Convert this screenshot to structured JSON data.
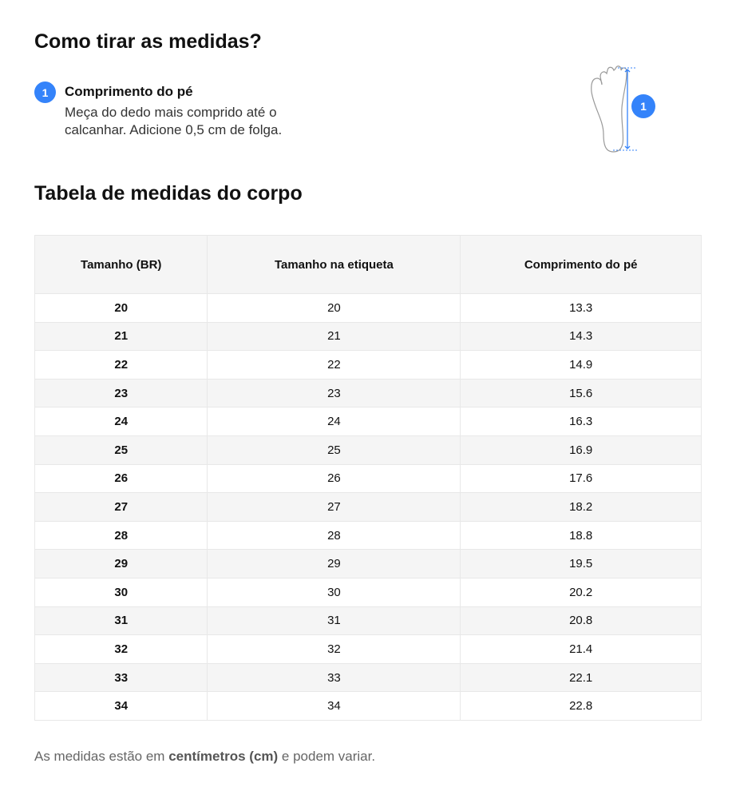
{
  "title": "Como tirar as medidas?",
  "step": {
    "number": "1",
    "title": "Comprimento do pé",
    "description": "Meça do dedo mais comprido até o calcanhar. Adicione 0,5 cm de folga."
  },
  "illustration": {
    "badge": "1",
    "accent": "#3483fa"
  },
  "table_title": "Tabela de medidas do corpo",
  "table": {
    "headers": [
      "Tamanho (BR)",
      "Tamanho na etiqueta",
      "Comprimento do pé"
    ],
    "rows": [
      [
        "20",
        "20",
        "13.3"
      ],
      [
        "21",
        "21",
        "14.3"
      ],
      [
        "22",
        "22",
        "14.9"
      ],
      [
        "23",
        "23",
        "15.6"
      ],
      [
        "24",
        "24",
        "16.3"
      ],
      [
        "25",
        "25",
        "16.9"
      ],
      [
        "26",
        "26",
        "17.6"
      ],
      [
        "27",
        "27",
        "18.2"
      ],
      [
        "28",
        "28",
        "18.8"
      ],
      [
        "29",
        "29",
        "19.5"
      ],
      [
        "30",
        "30",
        "20.2"
      ],
      [
        "31",
        "31",
        "20.8"
      ],
      [
        "32",
        "32",
        "21.4"
      ],
      [
        "33",
        "33",
        "22.1"
      ],
      [
        "34",
        "34",
        "22.8"
      ]
    ]
  },
  "note": {
    "before": "As medidas estão em ",
    "bold": "centímetros (cm)",
    "after": " e podem variar."
  }
}
